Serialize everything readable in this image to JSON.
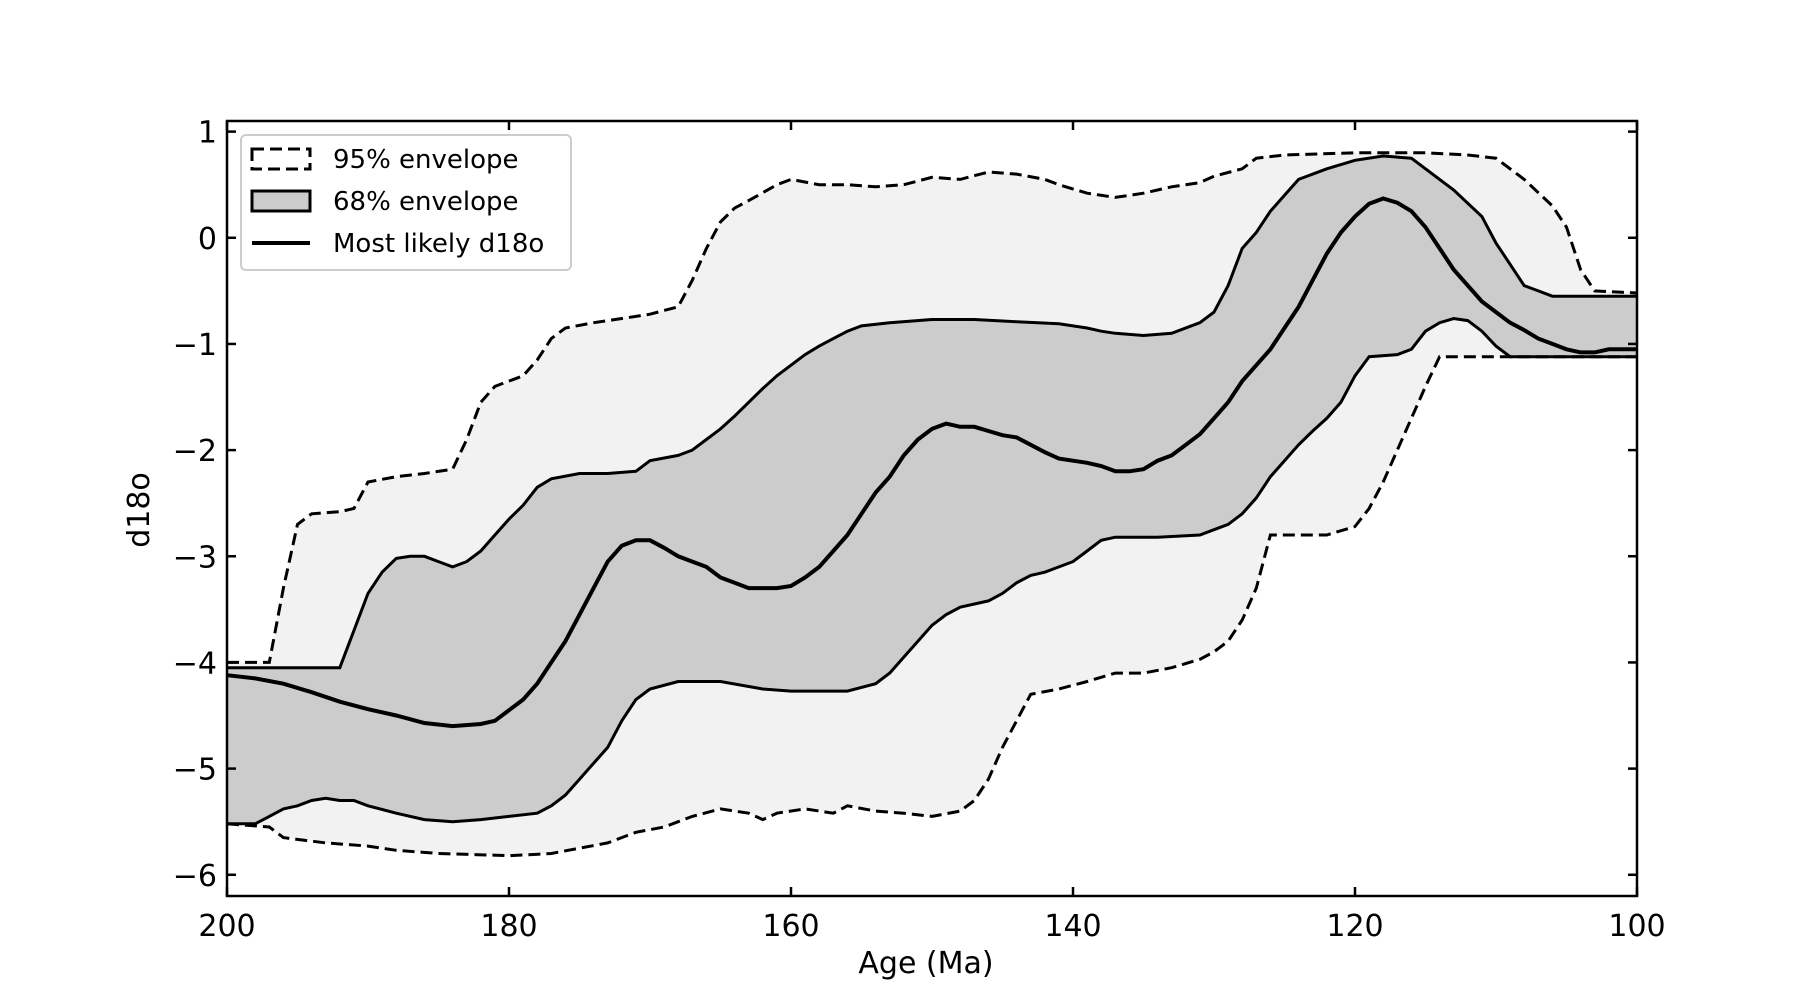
{
  "chart_data": {
    "type": "area",
    "title": "",
    "xlabel": "Age (Ma)",
    "ylabel": "d18o",
    "xlim": [
      200,
      100
    ],
    "ylim": [
      -6.2,
      1.1
    ],
    "x_reversed": true,
    "grid": false,
    "legend_position": "top-left",
    "xticks": [
      200,
      180,
      160,
      140,
      120,
      100
    ],
    "yticks": [
      1,
      0,
      -1,
      -2,
      -3,
      -4,
      -5,
      -6
    ],
    "tick_labels_x": [
      "200",
      "180",
      "160",
      "140",
      "120",
      "100"
    ],
    "tick_labels_y": [
      "1",
      "0",
      "−1",
      "−2",
      "−3",
      "−4",
      "−5",
      "−6"
    ],
    "legend": [
      {
        "key": "p95",
        "label": "95% envelope",
        "style": "dashed"
      },
      {
        "key": "p68",
        "label": "68% envelope",
        "style": "filled"
      },
      {
        "key": "most_likely",
        "label": "Most likely d18o",
        "style": "solid"
      }
    ],
    "colors": {
      "band95": "#f2f2f2",
      "band68": "#cccccc",
      "line": "#000000"
    },
    "series": {
      "p95_upper": [
        [
          200,
          -4.0
        ],
        [
          197,
          -4.0
        ],
        [
          196,
          -3.3
        ],
        [
          195,
          -2.7
        ],
        [
          194,
          -2.6
        ],
        [
          192,
          -2.58
        ],
        [
          191,
          -2.55
        ],
        [
          190,
          -2.3
        ],
        [
          188,
          -2.25
        ],
        [
          186,
          -2.22
        ],
        [
          184,
          -2.18
        ],
        [
          183,
          -1.9
        ],
        [
          182,
          -1.55
        ],
        [
          181,
          -1.4
        ],
        [
          179,
          -1.3
        ],
        [
          178,
          -1.15
        ],
        [
          177,
          -0.95
        ],
        [
          176,
          -0.85
        ],
        [
          174,
          -0.8
        ],
        [
          172,
          -0.76
        ],
        [
          170,
          -0.72
        ],
        [
          168,
          -0.65
        ],
        [
          167,
          -0.4
        ],
        [
          166,
          -0.1
        ],
        [
          165,
          0.15
        ],
        [
          164,
          0.28
        ],
        [
          163,
          0.35
        ],
        [
          161,
          0.5
        ],
        [
          160,
          0.55
        ],
        [
          158,
          0.5
        ],
        [
          156,
          0.5
        ],
        [
          154,
          0.48
        ],
        [
          152,
          0.5
        ],
        [
          150,
          0.57
        ],
        [
          148,
          0.55
        ],
        [
          146,
          0.62
        ],
        [
          144,
          0.6
        ],
        [
          142,
          0.55
        ],
        [
          141,
          0.5
        ],
        [
          139,
          0.42
        ],
        [
          137,
          0.38
        ],
        [
          135,
          0.42
        ],
        [
          133,
          0.48
        ],
        [
          131,
          0.52
        ],
        [
          130,
          0.58
        ],
        [
          128,
          0.65
        ],
        [
          127,
          0.75
        ],
        [
          125,
          0.78
        ],
        [
          120,
          0.8
        ],
        [
          115,
          0.8
        ],
        [
          112,
          0.78
        ],
        [
          110,
          0.75
        ],
        [
          108,
          0.55
        ],
        [
          106,
          0.3
        ],
        [
          105,
          0.1
        ],
        [
          104,
          -0.3
        ],
        [
          103,
          -0.5
        ],
        [
          100,
          -0.52
        ]
      ],
      "p95_lower": [
        [
          200,
          -5.52
        ],
        [
          197,
          -5.55
        ],
        [
          196,
          -5.65
        ],
        [
          193,
          -5.7
        ],
        [
          190,
          -5.73
        ],
        [
          188,
          -5.77
        ],
        [
          185,
          -5.8
        ],
        [
          180,
          -5.82
        ],
        [
          177,
          -5.8
        ],
        [
          175,
          -5.75
        ],
        [
          173,
          -5.7
        ],
        [
          171,
          -5.6
        ],
        [
          169,
          -5.55
        ],
        [
          167,
          -5.45
        ],
        [
          165,
          -5.38
        ],
        [
          163,
          -5.42
        ],
        [
          162,
          -5.48
        ],
        [
          161,
          -5.42
        ],
        [
          159,
          -5.38
        ],
        [
          157,
          -5.42
        ],
        [
          156,
          -5.35
        ],
        [
          154,
          -5.4
        ],
        [
          152,
          -5.42
        ],
        [
          150,
          -5.45
        ],
        [
          148,
          -5.4
        ],
        [
          147,
          -5.3
        ],
        [
          146,
          -5.1
        ],
        [
          145,
          -4.8
        ],
        [
          144,
          -4.55
        ],
        [
          143,
          -4.3
        ],
        [
          141,
          -4.25
        ],
        [
          139,
          -4.18
        ],
        [
          137,
          -4.1
        ],
        [
          135,
          -4.1
        ],
        [
          133,
          -4.05
        ],
        [
          131,
          -3.97
        ],
        [
          130,
          -3.9
        ],
        [
          129,
          -3.8
        ],
        [
          128,
          -3.6
        ],
        [
          127,
          -3.3
        ],
        [
          126,
          -2.8
        ],
        [
          124,
          -2.8
        ],
        [
          122,
          -2.8
        ],
        [
          120,
          -2.72
        ],
        [
          119,
          -2.55
        ],
        [
          118,
          -2.3
        ],
        [
          117,
          -2.0
        ],
        [
          116,
          -1.7
        ],
        [
          115,
          -1.4
        ],
        [
          114,
          -1.12
        ],
        [
          112,
          -1.12
        ],
        [
          100,
          -1.12
        ]
      ],
      "p68_upper": [
        [
          200,
          -4.05
        ],
        [
          192,
          -4.05
        ],
        [
          191,
          -3.7
        ],
        [
          190,
          -3.35
        ],
        [
          189,
          -3.15
        ],
        [
          188,
          -3.02
        ],
        [
          187,
          -3.0
        ],
        [
          186,
          -3.0
        ],
        [
          185,
          -3.05
        ],
        [
          184,
          -3.1
        ],
        [
          183,
          -3.05
        ],
        [
          182,
          -2.95
        ],
        [
          181,
          -2.8
        ],
        [
          180,
          -2.65
        ],
        [
          179,
          -2.52
        ],
        [
          178,
          -2.35
        ],
        [
          177,
          -2.27
        ],
        [
          175,
          -2.22
        ],
        [
          173,
          -2.22
        ],
        [
          171,
          -2.2
        ],
        [
          170,
          -2.1
        ],
        [
          168,
          -2.05
        ],
        [
          167,
          -2.0
        ],
        [
          166,
          -1.9
        ],
        [
          165,
          -1.8
        ],
        [
          164,
          -1.68
        ],
        [
          163,
          -1.55
        ],
        [
          162,
          -1.42
        ],
        [
          161,
          -1.3
        ],
        [
          160,
          -1.2
        ],
        [
          159,
          -1.1
        ],
        [
          158,
          -1.02
        ],
        [
          157,
          -0.95
        ],
        [
          156,
          -0.88
        ],
        [
          155,
          -0.83
        ],
        [
          153,
          -0.8
        ],
        [
          150,
          -0.77
        ],
        [
          147,
          -0.77
        ],
        [
          144,
          -0.79
        ],
        [
          141,
          -0.81
        ],
        [
          139,
          -0.85
        ],
        [
          138,
          -0.88
        ],
        [
          137,
          -0.9
        ],
        [
          135,
          -0.92
        ],
        [
          133,
          -0.9
        ],
        [
          131,
          -0.8
        ],
        [
          130,
          -0.7
        ],
        [
          129,
          -0.45
        ],
        [
          128,
          -0.1
        ],
        [
          127,
          0.05
        ],
        [
          126,
          0.25
        ],
        [
          125,
          0.4
        ],
        [
          124,
          0.55
        ],
        [
          122,
          0.65
        ],
        [
          120,
          0.73
        ],
        [
          118,
          0.77
        ],
        [
          116,
          0.75
        ],
        [
          115,
          0.65
        ],
        [
          113,
          0.45
        ],
        [
          111,
          0.2
        ],
        [
          110,
          -0.05
        ],
        [
          109,
          -0.25
        ],
        [
          108,
          -0.45
        ],
        [
          107,
          -0.5
        ],
        [
          106,
          -0.55
        ],
        [
          100,
          -0.55
        ]
      ],
      "p68_lower": [
        [
          200,
          -5.52
        ],
        [
          198,
          -5.52
        ],
        [
          197,
          -5.45
        ],
        [
          196,
          -5.38
        ],
        [
          195,
          -5.35
        ],
        [
          194,
          -5.3
        ],
        [
          193,
          -5.28
        ],
        [
          192,
          -5.3
        ],
        [
          191,
          -5.3
        ],
        [
          190,
          -5.35
        ],
        [
          188,
          -5.42
        ],
        [
          186,
          -5.48
        ],
        [
          184,
          -5.5
        ],
        [
          182,
          -5.48
        ],
        [
          180,
          -5.45
        ],
        [
          178,
          -5.42
        ],
        [
          177,
          -5.35
        ],
        [
          176,
          -5.25
        ],
        [
          175,
          -5.1
        ],
        [
          174,
          -4.95
        ],
        [
          173,
          -4.8
        ],
        [
          172,
          -4.55
        ],
        [
          171,
          -4.35
        ],
        [
          170,
          -4.25
        ],
        [
          168,
          -4.18
        ],
        [
          165,
          -4.18
        ],
        [
          162,
          -4.25
        ],
        [
          160,
          -4.27
        ],
        [
          158,
          -4.27
        ],
        [
          156,
          -4.27
        ],
        [
          154,
          -4.2
        ],
        [
          153,
          -4.1
        ],
        [
          152,
          -3.95
        ],
        [
          151,
          -3.8
        ],
        [
          150,
          -3.65
        ],
        [
          149,
          -3.55
        ],
        [
          148,
          -3.48
        ],
        [
          146,
          -3.42
        ],
        [
          145,
          -3.35
        ],
        [
          144,
          -3.25
        ],
        [
          143,
          -3.18
        ],
        [
          142,
          -3.15
        ],
        [
          141,
          -3.1
        ],
        [
          140,
          -3.05
        ],
        [
          139,
          -2.95
        ],
        [
          138,
          -2.85
        ],
        [
          137,
          -2.82
        ],
        [
          134,
          -2.82
        ],
        [
          131,
          -2.8
        ],
        [
          130,
          -2.75
        ],
        [
          129,
          -2.7
        ],
        [
          128,
          -2.6
        ],
        [
          127,
          -2.45
        ],
        [
          126,
          -2.25
        ],
        [
          125,
          -2.1
        ],
        [
          124,
          -1.95
        ],
        [
          123,
          -1.82
        ],
        [
          122,
          -1.7
        ],
        [
          121,
          -1.55
        ],
        [
          120,
          -1.3
        ],
        [
          119,
          -1.12
        ],
        [
          117,
          -1.1
        ],
        [
          116,
          -1.05
        ],
        [
          115,
          -0.88
        ],
        [
          114,
          -0.8
        ],
        [
          113,
          -0.76
        ],
        [
          112,
          -0.78
        ],
        [
          111,
          -0.88
        ],
        [
          110,
          -1.02
        ],
        [
          109,
          -1.12
        ],
        [
          100,
          -1.12
        ]
      ],
      "most_likely": [
        [
          200,
          -4.12
        ],
        [
          198,
          -4.15
        ],
        [
          196,
          -4.2
        ],
        [
          194,
          -4.28
        ],
        [
          192,
          -4.37
        ],
        [
          190,
          -4.44
        ],
        [
          188,
          -4.5
        ],
        [
          186,
          -4.57
        ],
        [
          184,
          -4.6
        ],
        [
          182,
          -4.58
        ],
        [
          181,
          -4.55
        ],
        [
          180,
          -4.45
        ],
        [
          179,
          -4.35
        ],
        [
          178,
          -4.2
        ],
        [
          177,
          -4.0
        ],
        [
          176,
          -3.8
        ],
        [
          175,
          -3.55
        ],
        [
          174,
          -3.3
        ],
        [
          173,
          -3.05
        ],
        [
          172,
          -2.9
        ],
        [
          171,
          -2.85
        ],
        [
          170,
          -2.85
        ],
        [
          169,
          -2.92
        ],
        [
          168,
          -3.0
        ],
        [
          167,
          -3.05
        ],
        [
          166,
          -3.1
        ],
        [
          165,
          -3.2
        ],
        [
          164,
          -3.25
        ],
        [
          163,
          -3.3
        ],
        [
          161,
          -3.3
        ],
        [
          160,
          -3.28
        ],
        [
          159,
          -3.2
        ],
        [
          158,
          -3.1
        ],
        [
          157,
          -2.95
        ],
        [
          156,
          -2.8
        ],
        [
          155,
          -2.6
        ],
        [
          154,
          -2.4
        ],
        [
          153,
          -2.25
        ],
        [
          152,
          -2.05
        ],
        [
          151,
          -1.9
        ],
        [
          150,
          -1.8
        ],
        [
          149,
          -1.75
        ],
        [
          148,
          -1.78
        ],
        [
          147,
          -1.78
        ],
        [
          146,
          -1.82
        ],
        [
          145,
          -1.86
        ],
        [
          144,
          -1.88
        ],
        [
          143,
          -1.95
        ],
        [
          142,
          -2.02
        ],
        [
          141,
          -2.08
        ],
        [
          140,
          -2.1
        ],
        [
          139,
          -2.12
        ],
        [
          138,
          -2.15
        ],
        [
          137,
          -2.2
        ],
        [
          136,
          -2.2
        ],
        [
          135,
          -2.18
        ],
        [
          134,
          -2.1
        ],
        [
          133,
          -2.05
        ],
        [
          132,
          -1.95
        ],
        [
          131,
          -1.85
        ],
        [
          130,
          -1.7
        ],
        [
          129,
          -1.55
        ],
        [
          128,
          -1.35
        ],
        [
          127,
          -1.2
        ],
        [
          126,
          -1.05
        ],
        [
          125,
          -0.85
        ],
        [
          124,
          -0.65
        ],
        [
          123,
          -0.4
        ],
        [
          122,
          -0.15
        ],
        [
          121,
          0.05
        ],
        [
          120,
          0.2
        ],
        [
          119,
          0.32
        ],
        [
          118,
          0.37
        ],
        [
          117,
          0.33
        ],
        [
          116,
          0.25
        ],
        [
          115,
          0.1
        ],
        [
          114,
          -0.1
        ],
        [
          113,
          -0.3
        ],
        [
          112,
          -0.45
        ],
        [
          111,
          -0.6
        ],
        [
          110,
          -0.7
        ],
        [
          109,
          -0.8
        ],
        [
          108,
          -0.87
        ],
        [
          107,
          -0.95
        ],
        [
          106,
          -1.0
        ],
        [
          105,
          -1.05
        ],
        [
          104,
          -1.08
        ],
        [
          103,
          -1.08
        ],
        [
          102,
          -1.05
        ],
        [
          100,
          -1.05
        ]
      ]
    }
  }
}
